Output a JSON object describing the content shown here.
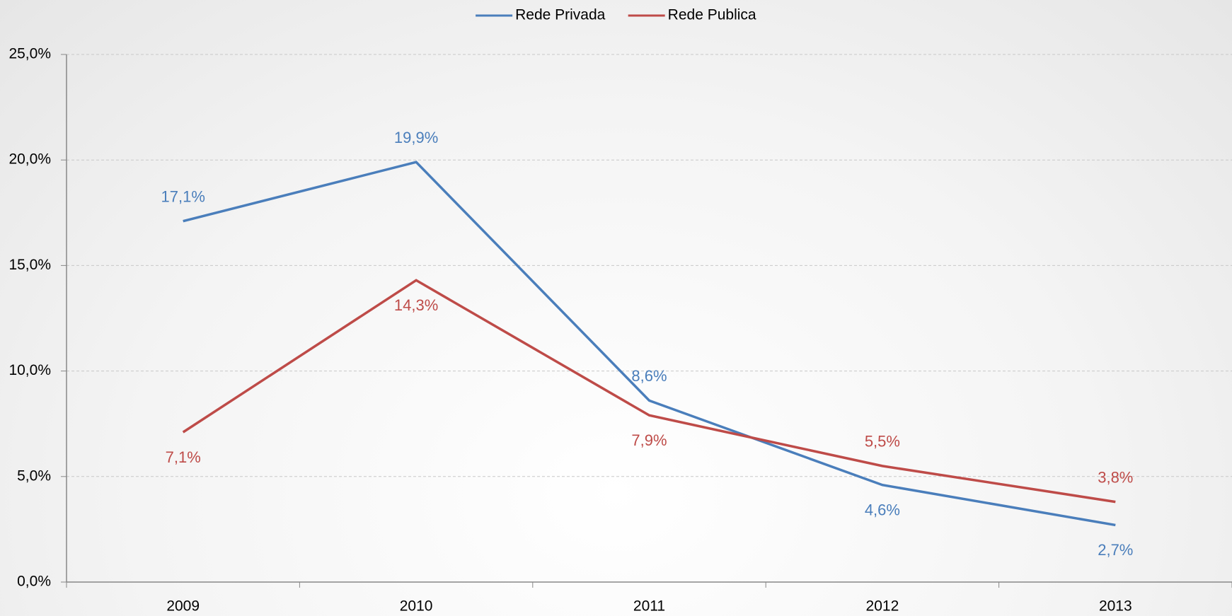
{
  "chart_data": {
    "type": "line",
    "categories": [
      "2009",
      "2010",
      "2011",
      "2012",
      "2013"
    ],
    "series": [
      {
        "name": "Rede Privada",
        "color": "#4a7ebb",
        "values": [
          17.1,
          19.9,
          8.6,
          4.6,
          2.7
        ],
        "value_labels": [
          "17,1%",
          "19,9%",
          "8,6%",
          "4,6%",
          "2,7%"
        ]
      },
      {
        "name": "Rede Publica",
        "color": "#be4b48",
        "values": [
          7.1,
          14.3,
          7.9,
          5.5,
          3.8
        ],
        "value_labels": [
          "7,1%",
          "14,3%",
          "7,9%",
          "5,5%",
          "3,8%"
        ]
      }
    ],
    "ylim": [
      0,
      25
    ],
    "yticks": [
      {
        "value": 0,
        "label": "0,0%"
      },
      {
        "value": 5,
        "label": "5,0%"
      },
      {
        "value": 10,
        "label": "10,0%"
      },
      {
        "value": 15,
        "label": "15,0%"
      },
      {
        "value": 20,
        "label": "20,0%"
      },
      {
        "value": 25,
        "label": "25,0%"
      }
    ],
    "grid": true,
    "legend": "top"
  }
}
